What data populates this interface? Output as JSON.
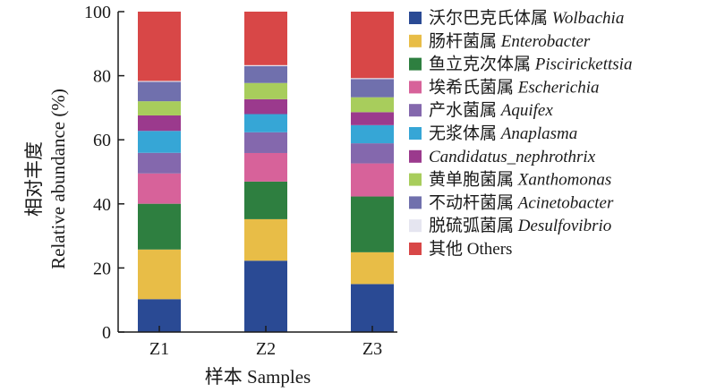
{
  "chart_data": {
    "type": "bar",
    "stacked": true,
    "categories": [
      "Z1",
      "Z2",
      "Z3"
    ],
    "xlabel": "样本 Samples",
    "ylabel": "相对丰度 Relative abundance (%)",
    "ylabel_zh": "相对丰度",
    "ylabel_en": "Relative abundance (%)",
    "ylim": [
      0,
      100
    ],
    "yticks": [
      0,
      20,
      40,
      60,
      80,
      100
    ],
    "legend_position": "right",
    "grid": false,
    "series": [
      {
        "name": "沃尔巴克氏体属 Wolbachia",
        "zh": "沃尔巴克氏体属",
        "latin": "Wolbachia",
        "italic_zh": false,
        "color": "#2a4a94",
        "values": [
          10.2,
          22.0,
          14.8
        ]
      },
      {
        "name": "肠杆菌属 Enterobacter",
        "zh": "肠杆菌属",
        "latin": "Enterobacter",
        "italic_zh": false,
        "color": "#e8bd47",
        "values": [
          15.4,
          12.8,
          9.8
        ]
      },
      {
        "name": "鱼立克次体属 Piscirickettsia",
        "zh": "鱼立克次体属",
        "latin": "Piscirickettsia",
        "italic_zh": false,
        "color": "#2e7f40",
        "values": [
          14.2,
          11.6,
          17.2
        ]
      },
      {
        "name": "埃希氏菌属 Escherichia",
        "zh": "埃希氏菌属",
        "latin": "Escherichia",
        "italic_zh": false,
        "color": "#d7629a",
        "values": [
          9.4,
          8.8,
          10.2
        ]
      },
      {
        "name": "产水菌属 Aquifex",
        "zh": "产水菌属",
        "latin": "Aquifex",
        "italic_zh": false,
        "color": "#8468ad",
        "values": [
          6.4,
          6.4,
          6.2
        ]
      },
      {
        "name": "无浆体属 Anaplasma",
        "zh": "无浆体属",
        "latin": "Anaplasma",
        "italic_zh": false,
        "color": "#36a6d6",
        "values": [
          6.8,
          5.6,
          5.6
        ]
      },
      {
        "name": "Candidatus_nephrothrix",
        "zh": "",
        "latin": "Candidatus_nephrothrix",
        "italic_zh": false,
        "color": "#9b3a8d",
        "values": [
          4.8,
          4.6,
          4.0
        ]
      },
      {
        "name": "黄单胞菌属 Xanthomonas",
        "zh": "黄单胞菌属",
        "latin": "Xanthomonas",
        "italic_zh": false,
        "color": "#a8cd5c",
        "values": [
          4.4,
          5.0,
          4.6
        ]
      },
      {
        "name": "不动杆菌属 Acinetobacter",
        "zh": "不动杆菌属",
        "latin": "Acinetobacter",
        "italic_zh": false,
        "color": "#7070ad",
        "values": [
          6.0,
          5.2,
          5.6
        ]
      },
      {
        "name": "脱硫弧菌属 Desulfovibrio",
        "zh": "脱硫弧菌属",
        "latin": "Desulfovibrio",
        "italic_zh": false,
        "color": "#e5e5f0",
        "values": [
          0.3,
          0.3,
          0.3
        ]
      },
      {
        "name": "其他 Others",
        "zh": "其他",
        "latin": "Others",
        "italic_zh": false,
        "latin_italic": false,
        "color": "#d84747",
        "values": [
          21.5,
          16.5,
          20.5
        ]
      }
    ]
  }
}
